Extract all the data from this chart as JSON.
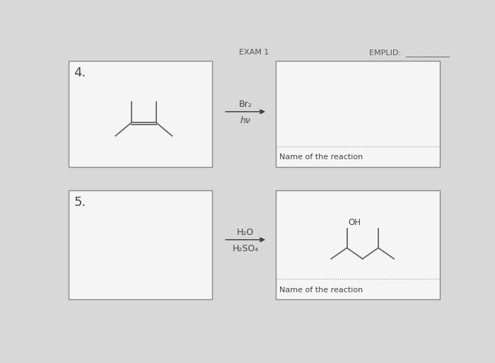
{
  "bg_color": "#d8d8d8",
  "box_color": "#f5f5f5",
  "box_border_color": "#888888",
  "text_color": "#444444",
  "header_text": "EXAM 1",
  "header_text2": "EMPLID:",
  "item4_label": "4.",
  "item5_label": "5.",
  "reagent4_line1": "Br₂",
  "reagent4_line2": "hν",
  "reagent5_line1": "H₂O",
  "reagent5_line2": "H₂SO₄",
  "name_reaction_text": "Name of the reaction",
  "dotted_line_color": "#999999",
  "line_color": "#666666",
  "font_size_label": 13,
  "font_size_reagent": 9,
  "font_size_name": 8,
  "header_bg": "#c8c8c8"
}
